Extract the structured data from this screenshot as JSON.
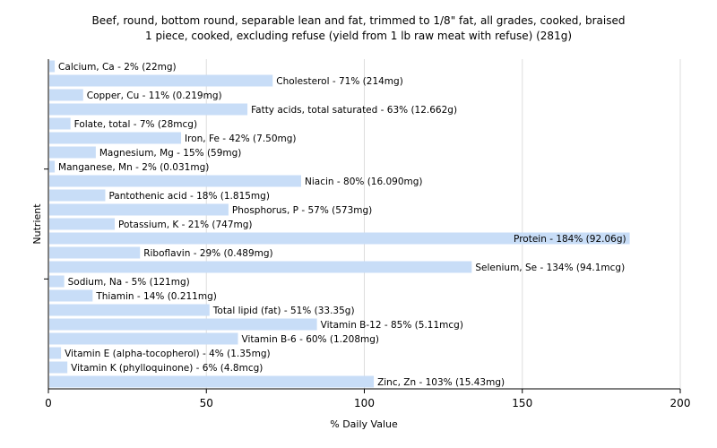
{
  "chart_data": {
    "type": "bar",
    "orientation": "horizontal",
    "title": "Beef, round, bottom round, separable lean and fat, trimmed to 1/8\" fat, all grades, cooked, braised",
    "subtitle": "1 piece, cooked, excluding refuse (yield from 1 lb raw meat with refuse) (281g)",
    "xlabel": "% Daily Value",
    "ylabel": "Nutrient",
    "xlim": [
      0,
      200
    ],
    "xticks": [
      "0",
      "50",
      "100",
      "150",
      "200"
    ],
    "grid": "vertical",
    "bar_color": "#c8ddf7",
    "categories": [
      "Calcium, Ca",
      "Cholesterol",
      "Copper, Cu",
      "Fatty acids, total saturated",
      "Folate, total",
      "Iron, Fe",
      "Magnesium, Mg",
      "Manganese, Mn",
      "Niacin",
      "Pantothenic acid",
      "Phosphorus, P",
      "Potassium, K",
      "Protein",
      "Riboflavin",
      "Selenium, Se",
      "Sodium, Na",
      "Thiamin",
      "Total lipid (fat)",
      "Vitamin B-12",
      "Vitamin B-6",
      "Vitamin E (alpha-tocopherol)",
      "Vitamin K (phylloquinone)",
      "Zinc, Zn"
    ],
    "values": [
      2,
      71,
      11,
      63,
      7,
      42,
      15,
      2,
      80,
      18,
      57,
      21,
      184,
      29,
      134,
      5,
      14,
      51,
      85,
      60,
      4,
      6,
      103
    ],
    "labels": [
      "Calcium, Ca - 2% (22mg)",
      "Cholesterol - 71% (214mg)",
      "Copper, Cu - 11% (0.219mg)",
      "Fatty acids, total saturated - 63% (12.662g)",
      "Folate, total - 7% (28mcg)",
      "Iron, Fe - 42% (7.50mg)",
      "Magnesium, Mg - 15% (59mg)",
      "Manganese, Mn - 2% (0.031mg)",
      "Niacin - 80% (16.090mg)",
      "Pantothenic acid - 18% (1.815mg)",
      "Phosphorus, P - 57% (573mg)",
      "Potassium, K - 21% (747mg)",
      "Protein - 184% (92.06g)",
      "Riboflavin - 29% (0.489mg)",
      "Selenium, Se - 134% (94.1mcg)",
      "Sodium, Na - 5% (121mg)",
      "Thiamin - 14% (0.211mg)",
      "Total lipid (fat) - 51% (33.35g)",
      "Vitamin B-12 - 85% (5.11mcg)",
      "Vitamin B-6 - 60% (1.208mg)",
      "Vitamin E (alpha-tocopherol) - 4% (1.35mg)",
      "Vitamin K (phylloquinone) - 6% (4.8mcg)",
      "Zinc, Zn - 103% (15.43mg)"
    ]
  }
}
